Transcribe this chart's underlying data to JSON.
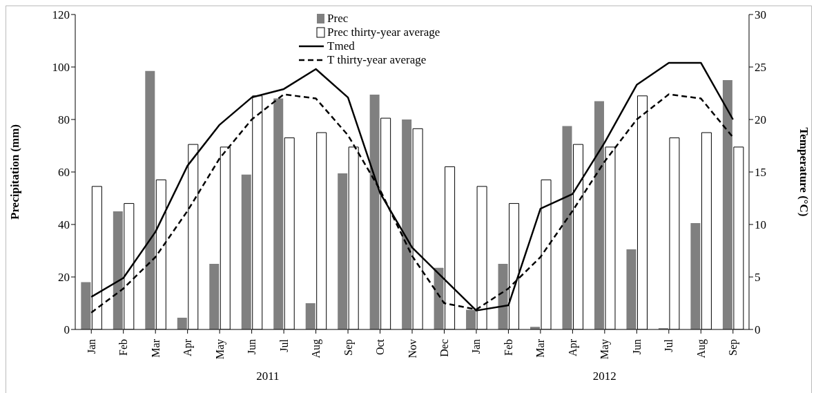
{
  "chart_data": {
    "type": "bar",
    "categories": [
      "Jan",
      "Feb",
      "Mar",
      "Apr",
      "May",
      "Jun",
      "Jul",
      "Aug",
      "Sep",
      "Oct",
      "Nov",
      "Dec",
      "Jan",
      "Feb",
      "Mar",
      "Apr",
      "May",
      "Jun",
      "Jul",
      "Aug",
      "Sep"
    ],
    "series": [
      {
        "name": "Prec",
        "color": "#808080",
        "values": [
          18,
          45,
          98.5,
          4.5,
          25,
          59,
          88,
          10,
          59.5,
          89.5,
          80,
          23.5,
          7.5,
          25,
          1,
          77.5,
          87,
          30.5,
          0.5,
          40.5,
          95
        ]
      },
      {
        "name": "Prec thirty-year average",
        "color": "#ffffff",
        "values": [
          54.5,
          48,
          57,
          70.5,
          69.5,
          89,
          73,
          75,
          69.5,
          80.5,
          76.5,
          62,
          54.5,
          48,
          57,
          70.5,
          69.5,
          89,
          73,
          75,
          69.5
        ]
      },
      {
        "name": "Tmed",
        "type": "line",
        "axis": "y2",
        "color": "#000000",
        "line_style": "solid",
        "values": [
          3.1,
          4.9,
          9.3,
          15.6,
          19.5,
          22.1,
          22.9,
          24.8,
          22.1,
          13,
          7.8,
          4.8,
          1.8,
          2.3,
          11.5,
          12.9,
          17.8,
          23.3,
          25.4,
          25.4,
          20
        ]
      },
      {
        "name": "T thirty-year average",
        "type": "line",
        "axis": "y2",
        "color": "#000000",
        "line_style": "dashed",
        "values": [
          1.6,
          3.9,
          6.9,
          11.3,
          16.3,
          20,
          22.4,
          22,
          18.5,
          13.3,
          7,
          2.5,
          1.9,
          3.9,
          6.9,
          11.3,
          16,
          20,
          22.4,
          22,
          18.3
        ]
      }
    ],
    "ylabel": "Precipitation (mm)",
    "y2label": "Temperature (°C)",
    "ylim": [
      0,
      120
    ],
    "yticks": [
      0,
      20,
      40,
      60,
      80,
      100,
      120
    ],
    "y2lim": [
      0,
      30
    ],
    "y2ticks": [
      0,
      5,
      10,
      15,
      20,
      25,
      30
    ],
    "annotations": [
      "2011",
      "2012"
    ],
    "legend": "top",
    "grid": false,
    "marker": "none"
  }
}
